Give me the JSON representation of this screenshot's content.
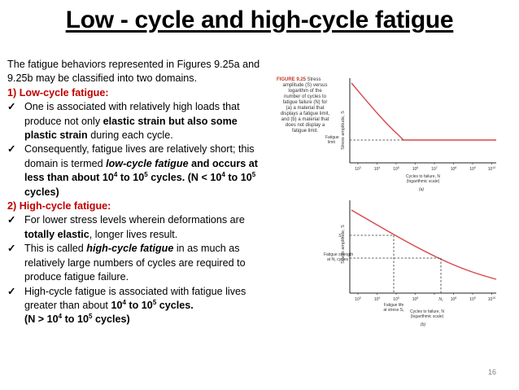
{
  "title": "Low - cycle and high-cycle fatigue",
  "intro": "The fatigue behaviors represented in Figures 9.25a and 9.25b may be classified into two domains.",
  "low_cycle": {
    "heading": "1) Low-cycle fatigue:",
    "b1_pre": "One is associated with relatively high loads that produce not only ",
    "b1_bold1": "elastic strain but also some plastic strain",
    "b1_post": " during each cycle.",
    "b2_pre": "Consequently, fatigue lives are relatively short; this domain is termed ",
    "b2_term": "low-cycle fatigue",
    "b2_mid": " and occurs at less than about 10",
    "b2_exp1": "4",
    "b2_to": " to 10",
    "b2_exp2": "5",
    "b2_cycles": " cycles",
    "b2_paren_a": ". (N < 10",
    "b2_paren_exp1": "4",
    "b2_paren_b": " to 10",
    "b2_paren_exp2": "5",
    "b2_paren_c": " cycles)"
  },
  "high_cycle": {
    "heading": "2) High-cycle fatigue:",
    "b1_pre": " For lower stress levels wherein deformations are ",
    "b1_bold": "totally elastic",
    "b1_post": ", longer lives result.",
    "b2_pre": "This is called ",
    "b2_term": "high-cycle fatigue",
    "b2_post": " in as much as relatively large numbers of cycles are required to produce fatigue failure.",
    "b3_pre": "High-cycle fatigue is associated with fatigue lives greater than about ",
    "b3_a": "10",
    "b3_exp1": "4",
    "b3_b": " to 10",
    "b3_exp2": "5",
    "b3_c": " cycles.",
    "b3_paren_a": "(N > 10",
    "b3_paren_exp1": "4",
    "b3_paren_b": " to 10",
    "b3_paren_exp2": "5",
    "b3_paren_c": " cycles)"
  },
  "check_symbol": "✓",
  "figure": {
    "caption_label": "FIGURE 9.25",
    "caption_lines": [
      "Stress",
      "amplitude (S) versus",
      "logarithm of the",
      "number of cycles to",
      "fatigue failure (N) for",
      "(a) a material that",
      "displays a fatigue limit,",
      "and (b) a material that",
      "does not display a",
      "fatigue limit."
    ],
    "ylabel": "Stress amplitude, S",
    "fatigue_limit": [
      "Fatigue",
      "limit"
    ],
    "exponents": [
      "3",
      "4",
      "5",
      "6",
      "7",
      "8",
      "9",
      "10"
    ],
    "tick_base": "10",
    "xlabel": [
      "Cycles to failure, N",
      "(logarithmic scale)"
    ],
    "label_a": "(a)",
    "label_b": "(b)",
    "s1_base": "S",
    "s1_sub": "1",
    "strength": [
      "Fatigue strength",
      "at N₁ cycles"
    ],
    "life": [
      "Fatigue life",
      "at stress S₁"
    ],
    "n1": "N₁",
    "page_number": "16"
  },
  "colors": {
    "accent": "#c00000",
    "curve": "#c0504d",
    "figure_red": "#d9474a"
  }
}
